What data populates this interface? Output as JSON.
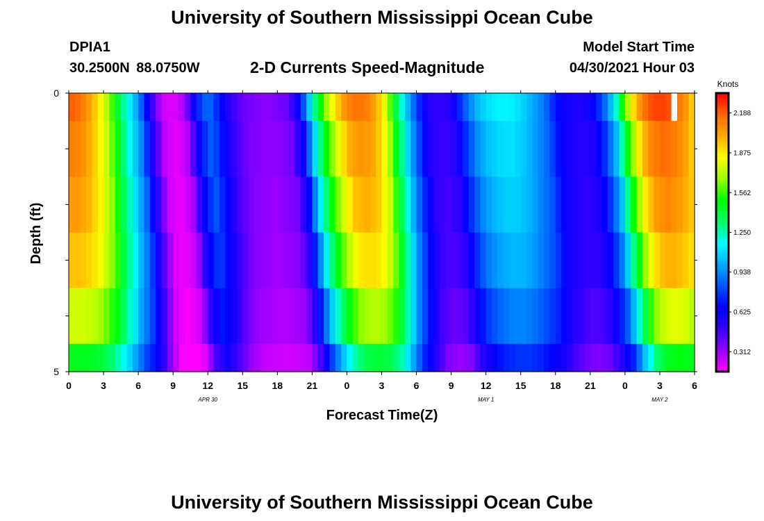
{
  "header": {
    "title": "University of Southern Mississippi Ocean Cube",
    "station": "DPIA1",
    "coordinates": "30.2500N 88.0750W",
    "model_start_label": "Model Start Time",
    "model_start_value": "04/30/2021 Hour 03"
  },
  "footer": {
    "title": "University of Southern Mississippi Ocean Cube"
  },
  "chart_data": {
    "type": "heatmap",
    "title": "2-D Currents Speed-Magnitude",
    "xlabel": "Forecast Time(Z)",
    "ylabel": "Depth (ft)",
    "x_range_hours": [
      0,
      54
    ],
    "y_range": [
      0,
      5
    ],
    "y_ticks": [
      "0",
      "5"
    ],
    "y_minor_ticks": 5,
    "x_ticks": [
      "0",
      "3",
      "6",
      "9",
      "12",
      "15",
      "18",
      "21",
      "0",
      "3",
      "6",
      "9",
      "12",
      "15",
      "18",
      "21",
      "0",
      "3",
      "6"
    ],
    "date_labels": [
      {
        "label": "APR 30",
        "hour": 12
      },
      {
        "label": "MAY 1",
        "hour": 36
      },
      {
        "label": "MAY 2",
        "hour": 51
      }
    ],
    "colorbar": {
      "units": "Knots",
      "min": 0.156,
      "max": 2.344,
      "tick_labels": [
        "2.188",
        "1.875",
        "1.562",
        "1.250",
        "0.938",
        "0.625",
        "0.312"
      ],
      "tick_values": [
        2.188,
        1.875,
        1.562,
        1.25,
        0.938,
        0.625,
        0.312
      ],
      "colors": [
        "#ff00ff",
        "#9900ff",
        "#3300ff",
        "#0000ff",
        "#0055ff",
        "#00aaff",
        "#00ffff",
        "#00ff66",
        "#00ff00",
        "#99ff00",
        "#ffff00",
        "#ffaa00",
        "#ff6600",
        "#ff0000"
      ]
    },
    "depth_bands": [
      0,
      0.5,
      1.5,
      2.5,
      3.5,
      4.5,
      5
    ],
    "speed_profile": {
      "hours": [
        0,
        1,
        2,
        3,
        4,
        5,
        6,
        7,
        8,
        9,
        10,
        11,
        12,
        13,
        14,
        15,
        17,
        19,
        20,
        21,
        22,
        23,
        24,
        25,
        26,
        27,
        28,
        29,
        30,
        31,
        32,
        33,
        34,
        35,
        36,
        37,
        38,
        39,
        40,
        41,
        42,
        43,
        44,
        45,
        46,
        47,
        48,
        49,
        50,
        51,
        52,
        53,
        54
      ],
      "surface_knots": [
        2.2,
        2.15,
        2.0,
        1.8,
        1.5,
        1.2,
        0.95,
        0.55,
        0.25,
        0.2,
        0.3,
        0.7,
        0.9,
        0.7,
        0.5,
        0.4,
        0.35,
        0.4,
        0.7,
        1.2,
        1.6,
        1.9,
        2.1,
        2.15,
        2.1,
        1.9,
        1.5,
        1.1,
        0.8,
        0.55,
        0.5,
        0.55,
        0.8,
        1.0,
        1.1,
        1.15,
        1.15,
        1.1,
        1.0,
        0.9,
        0.7,
        0.6,
        0.55,
        0.6,
        0.8,
        1.1,
        1.6,
        2.0,
        2.2,
        2.25,
        2.2,
        2.1,
        1.9
      ]
    },
    "depth_factors": [
      1.0,
      0.96,
      0.93,
      0.89,
      0.8,
      0.66
    ],
    "missing_cells": [
      {
        "hour": 52,
        "depth_band": 0
      }
    ]
  }
}
